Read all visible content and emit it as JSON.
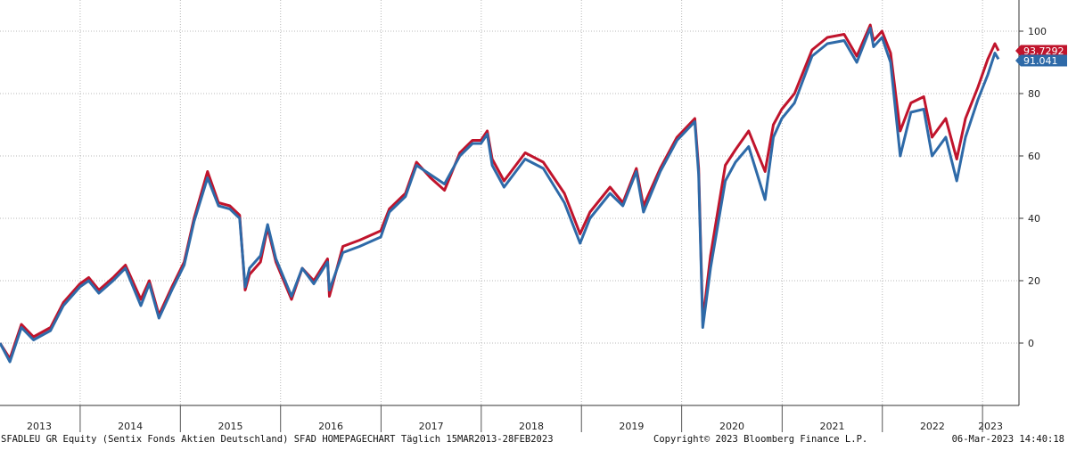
{
  "chart_data": {
    "type": "line",
    "title": "",
    "xlabel": "",
    "ylabel": "",
    "grid": true,
    "ylim": [
      -20,
      110
    ],
    "y_ticks": [
      0,
      20,
      40,
      60,
      80,
      100
    ],
    "x_ticks": [
      "2013",
      "2014",
      "2015",
      "2016",
      "2017",
      "2018",
      "2019",
      "2020",
      "2021",
      "2022",
      "2023"
    ],
    "x_range": [
      "2013-03-15",
      "2023-02-28"
    ],
    "series": [
      {
        "color": "#c0142c",
        "last_value": "93.7292",
        "points": [
          [
            "2013-03-15",
            0
          ],
          [
            "2013-04-20",
            -5
          ],
          [
            "2013-06-01",
            6
          ],
          [
            "2013-07-15",
            2
          ],
          [
            "2013-09-15",
            5
          ],
          [
            "2013-11-01",
            13
          ],
          [
            "2013-12-31",
            19
          ],
          [
            "2014-02-01",
            21
          ],
          [
            "2014-03-10",
            17
          ],
          [
            "2014-05-01",
            21
          ],
          [
            "2014-06-15",
            25
          ],
          [
            "2014-08-10",
            14
          ],
          [
            "2014-09-10",
            20
          ],
          [
            "2014-10-15",
            9
          ],
          [
            "2014-12-01",
            18
          ],
          [
            "2015-01-15",
            26
          ],
          [
            "2015-02-20",
            40
          ],
          [
            "2015-04-10",
            55
          ],
          [
            "2015-05-20",
            45
          ],
          [
            "2015-06-30",
            44
          ],
          [
            "2015-08-05",
            41
          ],
          [
            "2015-08-25",
            17
          ],
          [
            "2015-09-10",
            22
          ],
          [
            "2015-10-20",
            26
          ],
          [
            "2015-11-15",
            37
          ],
          [
            "2015-12-15",
            26
          ],
          [
            "2016-02-10",
            14
          ],
          [
            "2016-03-20",
            24
          ],
          [
            "2016-05-01",
            20
          ],
          [
            "2016-06-20",
            27
          ],
          [
            "2016-06-27",
            15
          ],
          [
            "2016-08-15",
            31
          ],
          [
            "2016-10-15",
            33
          ],
          [
            "2016-12-31",
            36
          ],
          [
            "2017-01-31",
            43
          ],
          [
            "2017-03-31",
            48
          ],
          [
            "2017-05-10",
            58
          ],
          [
            "2017-06-30",
            53
          ],
          [
            "2017-08-20",
            49
          ],
          [
            "2017-10-15",
            61
          ],
          [
            "2017-11-30",
            65
          ],
          [
            "2017-12-31",
            65
          ],
          [
            "2018-01-23",
            68
          ],
          [
            "2018-02-10",
            59
          ],
          [
            "2018-03-25",
            52
          ],
          [
            "2018-06-10",
            61
          ],
          [
            "2018-08-15",
            58
          ],
          [
            "2018-10-31",
            48
          ],
          [
            "2018-12-27",
            35
          ],
          [
            "2019-02-01",
            42
          ],
          [
            "2019-04-15",
            50
          ],
          [
            "2019-06-01",
            45
          ],
          [
            "2019-07-20",
            56
          ],
          [
            "2019-08-15",
            44
          ],
          [
            "2019-10-15",
            56
          ],
          [
            "2019-12-15",
            66
          ],
          [
            "2020-02-18",
            72
          ],
          [
            "2020-03-03",
            56
          ],
          [
            "2020-03-18",
            7
          ],
          [
            "2020-04-15",
            28
          ],
          [
            "2020-06-08",
            57
          ],
          [
            "2020-07-15",
            62
          ],
          [
            "2020-09-01",
            68
          ],
          [
            "2020-10-31",
            55
          ],
          [
            "2020-11-30",
            70
          ],
          [
            "2020-12-31",
            75
          ],
          [
            "2021-02-15",
            80
          ],
          [
            "2021-04-20",
            94
          ],
          [
            "2021-06-15",
            98
          ],
          [
            "2021-08-15",
            99
          ],
          [
            "2021-09-30",
            92
          ],
          [
            "2021-11-18",
            102
          ],
          [
            "2021-11-30",
            97
          ],
          [
            "2021-12-31",
            100
          ],
          [
            "2022-01-31",
            93
          ],
          [
            "2022-03-07",
            68
          ],
          [
            "2022-04-15",
            77
          ],
          [
            "2022-06-01",
            79
          ],
          [
            "2022-07-01",
            66
          ],
          [
            "2022-08-20",
            72
          ],
          [
            "2022-09-29",
            59
          ],
          [
            "2022-10-31",
            72
          ],
          [
            "2022-12-15",
            82
          ],
          [
            "2023-01-20",
            91
          ],
          [
            "2023-02-15",
            96
          ],
          [
            "2023-02-28",
            93.7292
          ]
        ]
      },
      {
        "color": "#2e6aa8",
        "last_value": "91.041",
        "points": [
          [
            "2013-03-15",
            0
          ],
          [
            "2013-04-20",
            -6
          ],
          [
            "2013-06-01",
            5
          ],
          [
            "2013-07-15",
            1
          ],
          [
            "2013-09-15",
            4
          ],
          [
            "2013-11-01",
            12
          ],
          [
            "2013-12-31",
            18
          ],
          [
            "2014-02-01",
            20
          ],
          [
            "2014-03-10",
            16
          ],
          [
            "2014-05-01",
            20
          ],
          [
            "2014-06-15",
            24
          ],
          [
            "2014-08-10",
            12
          ],
          [
            "2014-09-10",
            19
          ],
          [
            "2014-10-15",
            8
          ],
          [
            "2014-12-01",
            17
          ],
          [
            "2015-01-15",
            25
          ],
          [
            "2015-02-20",
            39
          ],
          [
            "2015-04-10",
            53
          ],
          [
            "2015-05-20",
            44
          ],
          [
            "2015-06-30",
            43
          ],
          [
            "2015-08-05",
            40
          ],
          [
            "2015-08-25",
            18
          ],
          [
            "2015-09-10",
            24
          ],
          [
            "2015-10-20",
            28
          ],
          [
            "2015-11-15",
            38
          ],
          [
            "2015-12-15",
            27
          ],
          [
            "2016-02-10",
            15
          ],
          [
            "2016-03-20",
            24
          ],
          [
            "2016-05-01",
            19
          ],
          [
            "2016-06-20",
            26
          ],
          [
            "2016-06-27",
            17
          ],
          [
            "2016-08-15",
            29
          ],
          [
            "2016-10-15",
            31
          ],
          [
            "2016-12-31",
            34
          ],
          [
            "2017-01-31",
            42
          ],
          [
            "2017-03-31",
            47
          ],
          [
            "2017-05-10",
            57
          ],
          [
            "2017-06-30",
            54
          ],
          [
            "2017-08-20",
            51
          ],
          [
            "2017-10-15",
            60
          ],
          [
            "2017-11-30",
            64
          ],
          [
            "2017-12-31",
            64
          ],
          [
            "2018-01-23",
            67
          ],
          [
            "2018-02-10",
            57
          ],
          [
            "2018-03-25",
            50
          ],
          [
            "2018-06-10",
            59
          ],
          [
            "2018-08-15",
            56
          ],
          [
            "2018-10-31",
            45
          ],
          [
            "2018-12-27",
            32
          ],
          [
            "2019-02-01",
            40
          ],
          [
            "2019-04-15",
            48
          ],
          [
            "2019-06-01",
            44
          ],
          [
            "2019-07-20",
            55
          ],
          [
            "2019-08-15",
            42
          ],
          [
            "2019-10-15",
            55
          ],
          [
            "2019-12-15",
            65
          ],
          [
            "2020-02-18",
            71
          ],
          [
            "2020-03-03",
            54
          ],
          [
            "2020-03-18",
            5
          ],
          [
            "2020-04-15",
            24
          ],
          [
            "2020-06-08",
            52
          ],
          [
            "2020-07-15",
            58
          ],
          [
            "2020-09-01",
            63
          ],
          [
            "2020-10-31",
            46
          ],
          [
            "2020-11-30",
            66
          ],
          [
            "2020-12-31",
            72
          ],
          [
            "2021-02-15",
            77
          ],
          [
            "2021-04-20",
            92
          ],
          [
            "2021-06-15",
            96
          ],
          [
            "2021-08-15",
            97
          ],
          [
            "2021-09-30",
            90
          ],
          [
            "2021-11-18",
            101
          ],
          [
            "2021-11-30",
            95
          ],
          [
            "2021-12-31",
            98
          ],
          [
            "2022-01-31",
            90
          ],
          [
            "2022-03-07",
            60
          ],
          [
            "2022-04-15",
            74
          ],
          [
            "2022-06-01",
            75
          ],
          [
            "2022-07-01",
            60
          ],
          [
            "2022-08-20",
            66
          ],
          [
            "2022-09-29",
            52
          ],
          [
            "2022-10-31",
            66
          ],
          [
            "2022-12-15",
            78
          ],
          [
            "2023-01-20",
            86
          ],
          [
            "2023-02-15",
            93
          ],
          [
            "2023-02-28",
            91.041
          ]
        ]
      }
    ]
  },
  "footer": {
    "left": "SFADLEU GR Equity (Sentix Fonds Aktien Deutschland) SFAD HOMEPAGECHART  Täglich 15MAR2013-28FEB2023",
    "center": "Copyright© 2023 Bloomberg Finance L.P.",
    "right": "06-Mar-2023 14:40:18"
  }
}
